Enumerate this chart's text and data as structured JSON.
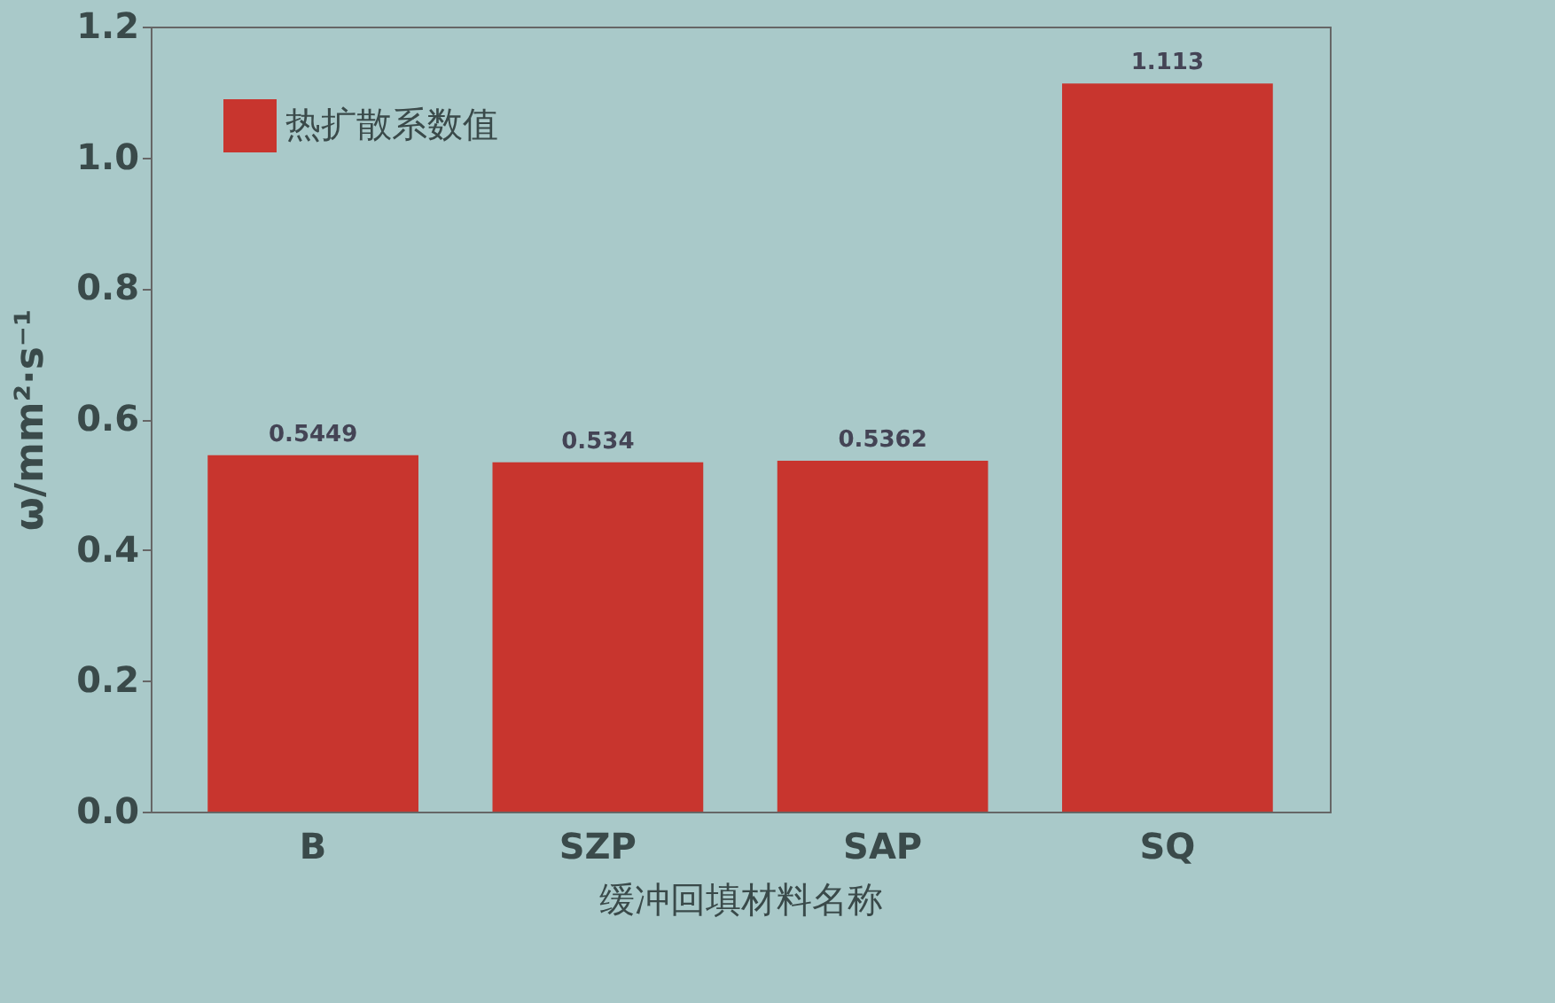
{
  "chart_data": {
    "type": "bar",
    "xlabel": "缓冲回填材料名称",
    "ylabel": "ω/mm²·s⁻¹",
    "categories": [
      "B",
      "SZP",
      "SAP",
      "SQ"
    ],
    "series": [
      {
        "name": "热扩散系数值",
        "color": "#c8352e",
        "values": [
          0.5449,
          0.534,
          0.5362,
          1.113
        ]
      }
    ],
    "ylim": [
      0,
      1.2
    ],
    "yticks": [
      {
        "value": 0,
        "label": "0.0"
      },
      {
        "value": 0.2,
        "label": "0.2"
      },
      {
        "value": 0.4,
        "label": "0.4"
      },
      {
        "value": 0.6,
        "label": "0.6"
      },
      {
        "value": 0.8,
        "label": "0.8"
      },
      {
        "value": 1,
        "label": "1.0"
      },
      {
        "value": 1.2,
        "label": "1.2"
      }
    ],
    "data_labels": true,
    "legend": "top left",
    "grid": false
  }
}
